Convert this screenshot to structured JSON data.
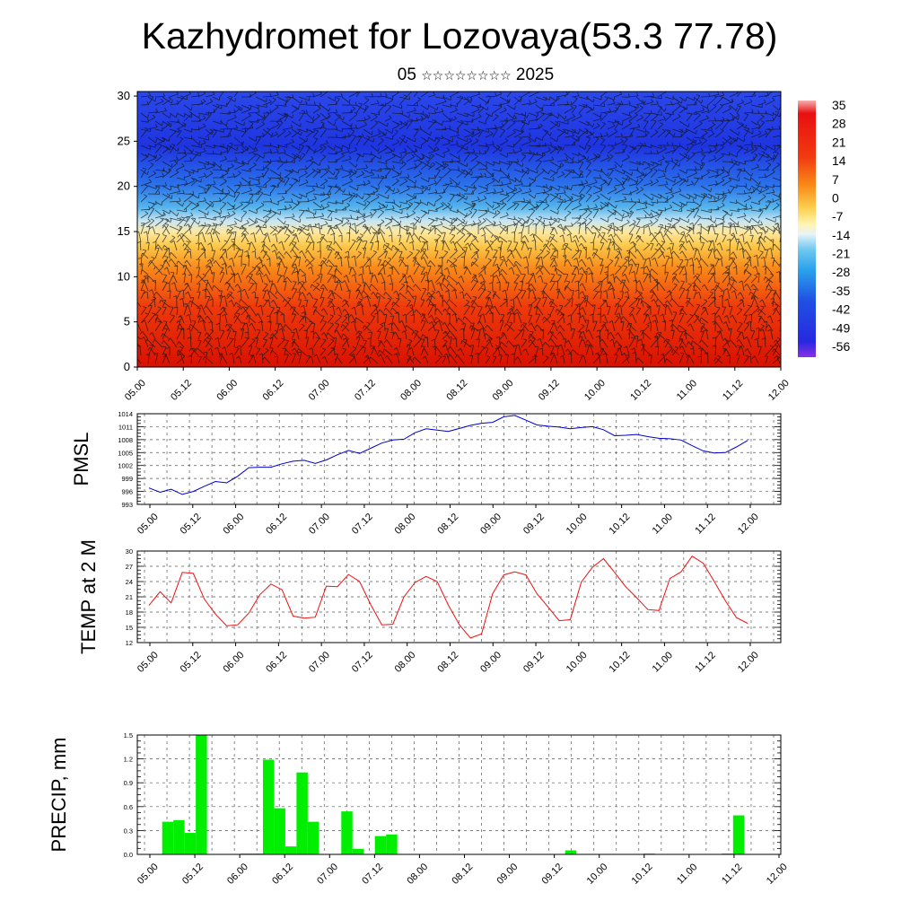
{
  "header": {
    "title": "Kazhydromet for Lozovaya(53.3 77.78)",
    "subtitle_day": "05",
    "subtitle_month": "☆☆☆☆☆☆☆☆",
    "subtitle_year": "2025"
  },
  "chart_data": [
    {
      "type": "heatmap",
      "description": "vertical cross-section with wind barbs",
      "x_ticks": [
        "05.00",
        "05.12",
        "06.00",
        "06.12",
        "07.00",
        "07.12",
        "08.00",
        "08.12",
        "09.00",
        "09.12",
        "10.00",
        "10.12",
        "11.00",
        "11.12",
        "12.00"
      ],
      "y_ticks": [
        "0",
        "5",
        "10",
        "15",
        "20",
        "25",
        "30"
      ],
      "ylim": [
        0,
        30.5
      ],
      "colorbar_labels": [
        "35",
        "28",
        "21",
        "14",
        "7",
        "0",
        "-7",
        "-14",
        "-21",
        "-28",
        "-35",
        "-42",
        "-49",
        "-56"
      ],
      "colors": {
        "warm": "#e8200e",
        "mid": "#fde9a0",
        "cold": "#1e34e0"
      }
    },
    {
      "type": "line",
      "ylabel": "PMSL",
      "ylim": [
        993,
        1014
      ],
      "y_ticks": [
        "1014",
        "1011",
        "1008",
        "1005",
        "1002",
        "999",
        "996",
        "993"
      ],
      "x_ticks": [
        "05.00",
        "05.12",
        "06.00",
        "06.12",
        "07.00",
        "07.12",
        "08.00",
        "08.12",
        "09.00",
        "09.12",
        "10.00",
        "10.12",
        "11.00",
        "11.12",
        "12.00"
      ],
      "color": "#0000cc",
      "values": [
        996.8,
        995.8,
        996.5,
        995.3,
        996.0,
        997.2,
        998.3,
        998.0,
        999.5,
        1001.5,
        1001.6,
        1001.6,
        1002.4,
        1003.0,
        1003.2,
        1002.5,
        1003.3,
        1004.5,
        1005.5,
        1004.8,
        1006.0,
        1007.2,
        1007.9,
        1008.1,
        1009.6,
        1010.5,
        1010.2,
        1009.9,
        1010.6,
        1011.3,
        1011.8,
        1012.0,
        1013.3,
        1013.6,
        1012.5,
        1011.4,
        1011.1,
        1010.9,
        1010.5,
        1010.8,
        1011.0,
        1010.3,
        1008.9,
        1009.0,
        1009.2,
        1008.7,
        1008.3,
        1008.2,
        1007.9,
        1006.6,
        1005.4,
        1004.9,
        1005.0,
        1006.3,
        1007.8
      ]
    },
    {
      "type": "line",
      "ylabel": "TEMP at 2 M",
      "ylim": [
        12,
        30
      ],
      "y_ticks": [
        "30",
        "27",
        "24",
        "21",
        "18",
        "15",
        "12"
      ],
      "x_ticks": [
        "05.00",
        "05.12",
        "06.00",
        "06.12",
        "07.00",
        "07.12",
        "08.00",
        "08.12",
        "09.00",
        "09.12",
        "10.00",
        "10.12",
        "11.00",
        "11.12",
        "12.00"
      ],
      "color": "#ee1111",
      "values": [
        19.3,
        22.0,
        19.8,
        25.8,
        25.6,
        20.5,
        17.6,
        15.3,
        15.5,
        17.8,
        21.4,
        23.5,
        22.4,
        17.2,
        16.8,
        17.0,
        23.1,
        23.0,
        25.4,
        24.0,
        19.5,
        15.5,
        15.6,
        21.0,
        23.8,
        25.0,
        24.0,
        19.4,
        15.5,
        12.9,
        13.7,
        21.6,
        25.3,
        25.9,
        25.3,
        21.6,
        19.0,
        16.3,
        16.5,
        23.9,
        26.8,
        28.5,
        25.8,
        23.0,
        20.8,
        18.5,
        18.3,
        24.6,
        25.9,
        29.0,
        27.6,
        24.0,
        20.2,
        16.9,
        15.8
      ]
    },
    {
      "type": "bar",
      "ylabel": "PRECIP, mm",
      "ylim": [
        0,
        1.5
      ],
      "y_ticks": [
        "1.5",
        "1.2",
        "0.9",
        "0.6",
        "0.3",
        "0.0"
      ],
      "x_ticks": [
        "05.00",
        "05.12",
        "06.00",
        "06.12",
        "07.00",
        "07.12",
        "08.00",
        "08.12",
        "09.00",
        "09.12",
        "10.00",
        "10.12",
        "11.00",
        "11.12",
        "12.00"
      ],
      "color": "#00ee00",
      "values": [
        0,
        0,
        0.41,
        0.43,
        0.27,
        1.5,
        0,
        0,
        0,
        0.01,
        0.01,
        1.19,
        0.58,
        0.1,
        1.03,
        0.41,
        0,
        0,
        0.54,
        0.07,
        0,
        0.23,
        0.25,
        0,
        0,
        0,
        0,
        0,
        0,
        0,
        0,
        0,
        0,
        0,
        0,
        0,
        0,
        0,
        0.05,
        0,
        0,
        0,
        0,
        0,
        0,
        0.01,
        0,
        0,
        0,
        0,
        0,
        0,
        0.01,
        0.49,
        0
      ]
    }
  ]
}
